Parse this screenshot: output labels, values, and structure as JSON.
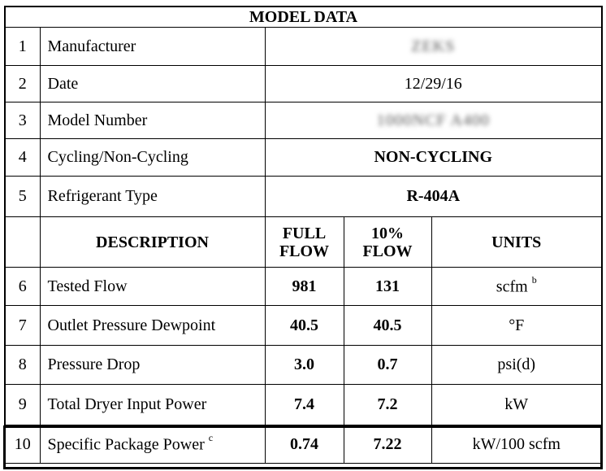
{
  "title": "MODEL DATA",
  "info_rows": [
    {
      "num": "1",
      "label": "Manufacturer",
      "value": "ZEKS",
      "blurred": true
    },
    {
      "num": "2",
      "label": "Date",
      "value": "12/29/16",
      "blurred": false
    },
    {
      "num": "3",
      "label": "Model Number",
      "value": "1000NCF A400",
      "blurred": true
    },
    {
      "num": "4",
      "label": "Cycling/Non-Cycling",
      "value": "NON-CYCLING",
      "blurred": false
    },
    {
      "num": "5",
      "label": "Refrigerant Type",
      "value": "R-404A",
      "blurred": false
    }
  ],
  "header": {
    "description": "DESCRIPTION",
    "full_flow_1": "FULL",
    "full_flow_2": "FLOW",
    "ten_flow_1": "10%",
    "ten_flow_2": "FLOW",
    "units": "UNITS"
  },
  "data_rows": [
    {
      "num": "6",
      "label": "Tested Flow",
      "label_sup": "",
      "full": "981",
      "ten": "131",
      "unit": "scfm",
      "unit_sup": "b"
    },
    {
      "num": "7",
      "label": "Outlet Pressure Dewpoint",
      "label_sup": "",
      "full": "40.5",
      "ten": "40.5",
      "unit": "°F",
      "unit_sup": ""
    },
    {
      "num": "8",
      "label": "Pressure Drop",
      "label_sup": "",
      "full": "3.0",
      "ten": "0.7",
      "unit": "psi(d)",
      "unit_sup": ""
    },
    {
      "num": "9",
      "label": "Total Dryer Input Power",
      "label_sup": "",
      "full": "7.4",
      "ten": "7.2",
      "unit": "kW",
      "unit_sup": ""
    },
    {
      "num": "10",
      "label": "Specific Package Power",
      "label_sup": "c",
      "full": "0.74",
      "ten": "7.22",
      "unit": "kW/100 scfm",
      "unit_sup": ""
    }
  ]
}
